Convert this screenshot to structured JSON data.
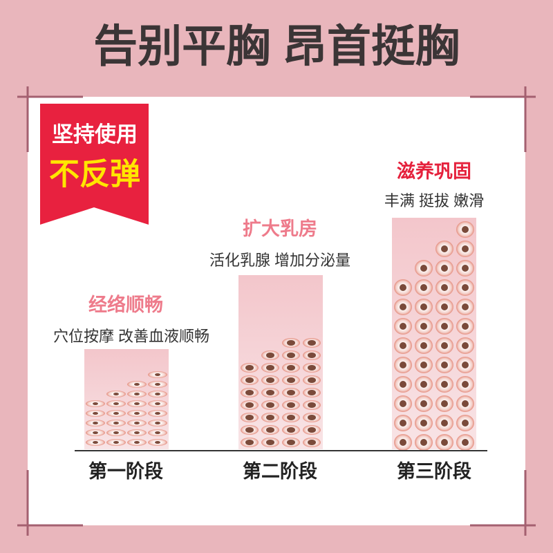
{
  "header": {
    "title": "告别平胸 昂首挺胸"
  },
  "badge": {
    "line1": "坚持使用",
    "line2": "不反弹"
  },
  "stages": [
    {
      "title": "经络顺畅",
      "subtitle": "穴位按摩 改善血液顺畅",
      "label": "第一阶段"
    },
    {
      "title": "扩大乳房",
      "subtitle": "活化乳腺 增加分泌量",
      "label": "第二阶段"
    },
    {
      "title": "滋养巩固",
      "subtitle": "丰满 挺拔 嫩滑",
      "label": "第三阶段"
    }
  ]
}
